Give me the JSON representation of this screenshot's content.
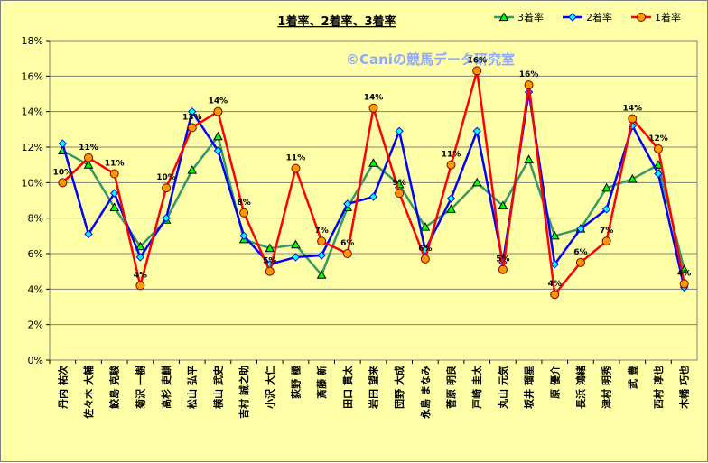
{
  "chart_data": {
    "type": "line",
    "title": "1着率、2着率、3着率",
    "watermark": "©Caniの競馬データ研究室",
    "y_ticks": [
      "0%",
      "2%",
      "4%",
      "6%",
      "8%",
      "10%",
      "12%",
      "14%",
      "16%",
      "18%"
    ],
    "ylim": [
      0,
      18
    ],
    "grid": "horizontal",
    "legend_position": "top-right",
    "categories": [
      "丹内 祐次",
      "佐々木 大輔",
      "鮫島 克駿",
      "菊沢 一樹",
      "高杉 吏麒",
      "松山 弘平",
      "横山 武史",
      "吉村 誠之助",
      "小沢 大仁",
      "荻野 極",
      "斎藤 新",
      "田口 貫太",
      "岩田 望来",
      "団野 大成",
      "永島 まなみ",
      "菅原 明良",
      "戸崎 圭太",
      "丸山 元気",
      "坂井 瑠星",
      "原 優介",
      "長浜 鴻緒",
      "津村 明秀",
      "武 豊",
      "西村 淳也",
      "木幡 巧也"
    ],
    "series": [
      {
        "name": "3着率",
        "color": "#339966",
        "marker": "triangle",
        "marker_fill": "#00ff00",
        "values": [
          11.8,
          11.0,
          8.6,
          6.4,
          7.9,
          10.7,
          12.6,
          6.8,
          6.3,
          6.5,
          4.8,
          8.6,
          11.1,
          9.9,
          7.5,
          8.5,
          10.0,
          8.7,
          11.3,
          7.0,
          7.4,
          9.7,
          10.2,
          11.0,
          5.1
        ]
      },
      {
        "name": "2着率",
        "color": "#0000ff",
        "marker": "diamond",
        "marker_fill": "#00ffff",
        "values": [
          12.2,
          7.1,
          9.4,
          5.8,
          8.0,
          14.0,
          11.8,
          7.0,
          5.4,
          5.8,
          5.9,
          8.8,
          9.2,
          12.9,
          6.2,
          9.1,
          12.9,
          5.5,
          15.1,
          5.4,
          7.4,
          8.5,
          13.2,
          10.5,
          4.1
        ]
      },
      {
        "name": "1着率",
        "color": "#ff0000",
        "marker": "circle",
        "marker_fill": "#ff9900",
        "values": [
          10.0,
          11.4,
          10.5,
          4.2,
          9.7,
          13.1,
          14.0,
          8.3,
          5.0,
          10.8,
          6.7,
          6.0,
          14.2,
          9.4,
          5.7,
          11.0,
          16.3,
          5.1,
          15.5,
          3.7,
          5.5,
          6.7,
          13.6,
          11.9,
          4.3
        ]
      }
    ],
    "data_labels_series": "1着率",
    "data_labels": [
      "10%",
      "11%",
      "11%",
      "4%",
      "10%",
      "13%",
      "14%",
      "8%",
      "5%",
      "11%",
      "7%",
      "6%",
      "14%",
      "9%",
      "6%",
      "11%",
      "16%",
      "5%",
      "16%",
      "4%",
      "6%",
      "7%",
      "14%",
      "12%",
      "4%"
    ]
  }
}
